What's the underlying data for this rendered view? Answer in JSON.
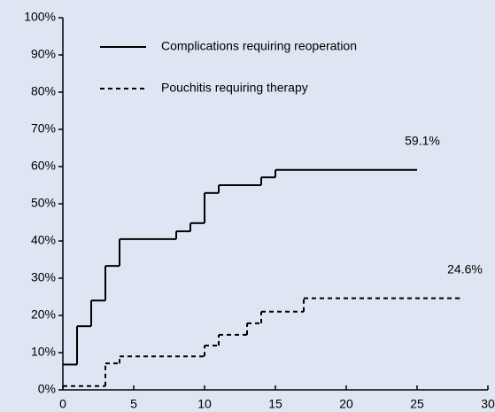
{
  "chart_data": {
    "type": "step",
    "series": [
      {
        "name": "Complications requiring reoperation",
        "color": "#000000",
        "dash": "none",
        "x": [
          0,
          1,
          2,
          3,
          4,
          8,
          9,
          10,
          11,
          14,
          15,
          25
        ],
        "values": [
          6.8,
          17.1,
          24.0,
          33.3,
          40.5,
          42.6,
          44.8,
          52.9,
          55.0,
          57.1,
          59.1,
          59.1
        ]
      },
      {
        "name": "Pouchitis requiring therapy",
        "color": "#000000",
        "dash": "5,4",
        "x": [
          0,
          3,
          4,
          10,
          11,
          13,
          14,
          17,
          28
        ],
        "values": [
          1.0,
          7.1,
          9.0,
          11.9,
          14.8,
          17.9,
          21.0,
          24.6,
          24.6
        ]
      }
    ],
    "annotations": [
      {
        "text": "59.1%",
        "x": 25,
        "y": 59.1
      },
      {
        "text": "24.6%",
        "x": 28,
        "y": 24.6
      }
    ],
    "xlim": [
      0,
      30
    ],
    "xticks": [
      0,
      5,
      10,
      15,
      20,
      25,
      30
    ],
    "ylim": [
      0,
      100
    ],
    "yticks": [
      {
        "value": 0,
        "label": "0%"
      },
      {
        "value": 10,
        "label": "10%"
      },
      {
        "value": 20,
        "label": "20%"
      },
      {
        "value": 30,
        "label": "30%"
      },
      {
        "value": 40,
        "label": "40%"
      },
      {
        "value": 50,
        "label": "50%"
      },
      {
        "value": 60,
        "label": "60%"
      },
      {
        "value": 70,
        "label": "70%"
      },
      {
        "value": 80,
        "label": "80%"
      },
      {
        "value": 90,
        "label": "90%"
      },
      {
        "value": 100,
        "label": "100%"
      }
    ],
    "legend": "top-left"
  }
}
